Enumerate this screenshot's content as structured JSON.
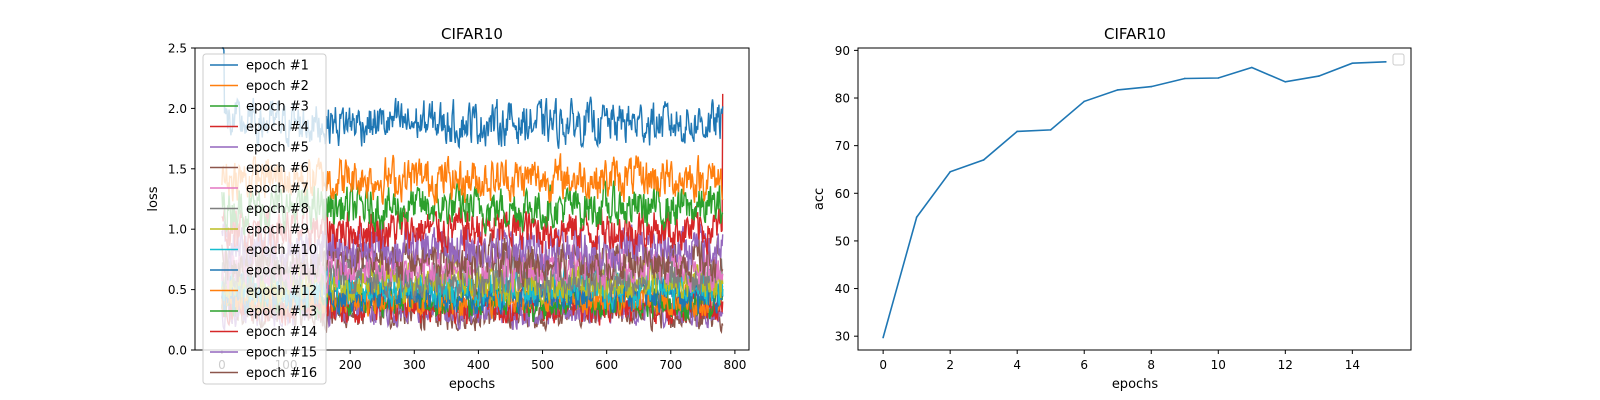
{
  "chart_data": [
    {
      "type": "line",
      "title": "CIFAR10",
      "xlabel": "epochs",
      "ylabel": "loss",
      "xlim": [
        -42,
        822
      ],
      "ylim": [
        0,
        2.5
      ],
      "xticks": [
        0,
        100,
        200,
        300,
        400,
        500,
        600,
        700,
        800
      ],
      "yticks": [
        0.0,
        0.5,
        1.0,
        1.5,
        2.0,
        2.5
      ],
      "legend_position": "upper-left",
      "points_per_series": 782,
      "series": [
        {
          "name": "epoch #1",
          "color": "#1f77b4",
          "approx_level": 1.88,
          "noise": 0.14
        },
        {
          "name": "epoch #2",
          "color": "#ff7f0e",
          "approx_level": 1.42,
          "noise": 0.14
        },
        {
          "name": "epoch #3",
          "color": "#2ca02c",
          "approx_level": 1.18,
          "noise": 0.14
        },
        {
          "name": "epoch #4",
          "color": "#d62728",
          "approx_level": 1.0,
          "noise": 0.14
        },
        {
          "name": "epoch #5",
          "color": "#9467bd",
          "approx_level": 0.85,
          "noise": 0.14
        },
        {
          "name": "epoch #6",
          "color": "#8c564b",
          "approx_level": 0.75,
          "noise": 0.13
        },
        {
          "name": "epoch #7",
          "color": "#e377c2",
          "approx_level": 0.68,
          "noise": 0.13
        },
        {
          "name": "epoch #8",
          "color": "#7f7f7f",
          "approx_level": 0.62,
          "noise": 0.13
        },
        {
          "name": "epoch #9",
          "color": "#bcbd22",
          "approx_level": 0.56,
          "noise": 0.12
        },
        {
          "name": "epoch #10",
          "color": "#17becf",
          "approx_level": 0.52,
          "noise": 0.12
        },
        {
          "name": "epoch #11",
          "color": "#1f77b4",
          "approx_level": 0.47,
          "noise": 0.12
        },
        {
          "name": "epoch #12",
          "color": "#ff7f0e",
          "approx_level": 0.43,
          "noise": 0.11
        },
        {
          "name": "epoch #13",
          "color": "#2ca02c",
          "approx_level": 0.4,
          "noise": 0.11
        },
        {
          "name": "epoch #14",
          "color": "#d62728",
          "approx_level": 0.36,
          "noise": 0.11
        },
        {
          "name": "epoch #15",
          "color": "#9467bd",
          "approx_level": 0.33,
          "noise": 0.1
        },
        {
          "name": "epoch #16",
          "color": "#8c564b",
          "approx_level": 0.3,
          "noise": 0.1
        }
      ]
    },
    {
      "type": "line",
      "title": "CIFAR10",
      "xlabel": "epochs",
      "ylabel": "acc",
      "xlim": [
        -0.75,
        15.75
      ],
      "ylim": [
        27.1,
        90.5
      ],
      "xticks": [
        0,
        2,
        4,
        6,
        8,
        10,
        12,
        14
      ],
      "yticks": [
        30,
        40,
        50,
        60,
        70,
        80,
        90
      ],
      "legend_position": "upper-right",
      "x": [
        0,
        1,
        2,
        3,
        4,
        5,
        6,
        7,
        8,
        9,
        10,
        11,
        12,
        13,
        14,
        15
      ],
      "series": [
        {
          "color": "#1f77b4",
          "values": [
            29.7,
            55.0,
            64.5,
            67.0,
            73.0,
            73.3,
            79.3,
            81.7,
            82.4,
            84.1,
            84.2,
            86.4,
            83.4,
            84.6,
            87.3,
            87.6
          ]
        }
      ]
    }
  ]
}
